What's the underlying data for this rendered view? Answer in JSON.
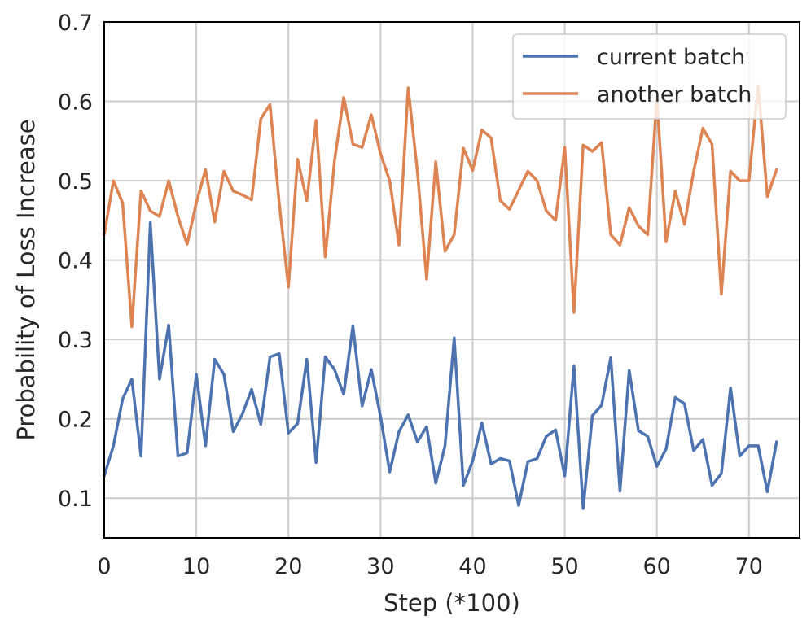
{
  "chart_data": {
    "type": "line",
    "title": "",
    "xlabel": "Step (*100)",
    "ylabel": "Probability of Loss Increase",
    "xlim": [
      0,
      75.5
    ],
    "ylim": [
      0.05,
      0.7
    ],
    "xticks": [
      0,
      10,
      20,
      30,
      40,
      50,
      60,
      70
    ],
    "yticks": [
      0.1,
      0.2,
      0.3,
      0.4,
      0.5,
      0.6,
      0.7
    ],
    "xtick_labels": [
      "0",
      "10",
      "20",
      "30",
      "40",
      "50",
      "60",
      "70"
    ],
    "ytick_labels": [
      "0.1",
      "0.2",
      "0.3",
      "0.4",
      "0.5",
      "0.6",
      "0.7"
    ],
    "grid": true,
    "legend_position": "top-right",
    "series": [
      {
        "name": "current batch",
        "color": "#4c72b0",
        "values": [
          0.128,
          0.166,
          0.225,
          0.25,
          0.153,
          0.447,
          0.25,
          0.318,
          0.153,
          0.157,
          0.256,
          0.166,
          0.275,
          0.256,
          0.184,
          0.206,
          0.237,
          0.193,
          0.278,
          0.282,
          0.182,
          0.194,
          0.275,
          0.145,
          0.278,
          0.262,
          0.231,
          0.317,
          0.216,
          0.262,
          0.203,
          0.133,
          0.184,
          0.205,
          0.171,
          0.19,
          0.119,
          0.166,
          0.302,
          0.116,
          0.147,
          0.195,
          0.143,
          0.15,
          0.147,
          0.091,
          0.146,
          0.15,
          0.178,
          0.186,
          0.128,
          0.267,
          0.087,
          0.204,
          0.217,
          0.277,
          0.109,
          0.261,
          0.185,
          0.178,
          0.14,
          0.162,
          0.227,
          0.219,
          0.16,
          0.174,
          0.116,
          0.131,
          0.239,
          0.153,
          0.166,
          0.166,
          0.108,
          0.171
        ]
      },
      {
        "name": "another batch",
        "color": "#dd8452",
        "values": [
          0.432,
          0.5,
          0.472,
          0.316,
          0.487,
          0.462,
          0.455,
          0.5,
          0.455,
          0.42,
          0.472,
          0.514,
          0.448,
          0.512,
          0.487,
          0.482,
          0.476,
          0.578,
          0.596,
          0.472,
          0.366,
          0.527,
          0.475,
          0.576,
          0.404,
          0.525,
          0.605,
          0.546,
          0.542,
          0.583,
          0.534,
          0.5,
          0.419,
          0.617,
          0.512,
          0.376,
          0.524,
          0.411,
          0.432,
          0.541,
          0.513,
          0.564,
          0.554,
          0.475,
          0.464,
          0.488,
          0.512,
          0.5,
          0.462,
          0.45,
          0.542,
          0.334,
          0.545,
          0.537,
          0.548,
          0.432,
          0.419,
          0.466,
          0.443,
          0.432,
          0.605,
          0.423,
          0.487,
          0.445,
          0.512,
          0.566,
          0.546,
          0.357,
          0.512,
          0.5,
          0.5,
          0.62,
          0.48,
          0.514
        ]
      }
    ]
  }
}
